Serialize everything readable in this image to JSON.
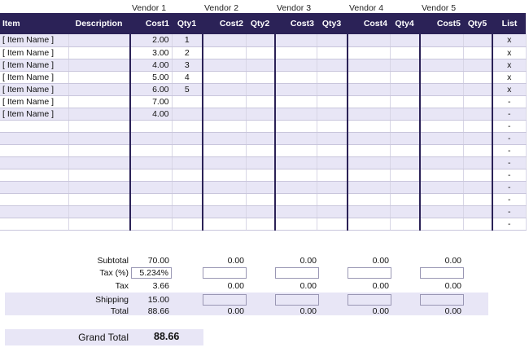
{
  "vendors": [
    "Vendor 1",
    "Vendor 2",
    "Vendor 3",
    "Vendor 4",
    "Vendor 5"
  ],
  "headers": {
    "item": "Item",
    "description": "Description",
    "cost1": "Cost1",
    "qty1": "Qty1",
    "cost2": "Cost2",
    "qty2": "Qty2",
    "cost3": "Cost3",
    "qty3": "Qty3",
    "cost4": "Cost4",
    "qty4": "Qty4",
    "cost5": "Cost5",
    "qty5": "Qty5",
    "list": "List"
  },
  "rows": [
    {
      "item": "[ Item Name ]",
      "description": "",
      "cost1": "2.00",
      "qty1": "1",
      "list": "x"
    },
    {
      "item": "[ Item Name ]",
      "description": "",
      "cost1": "3.00",
      "qty1": "2",
      "list": "x"
    },
    {
      "item": "[ Item Name ]",
      "description": "",
      "cost1": "4.00",
      "qty1": "3",
      "list": "x"
    },
    {
      "item": "[ Item Name ]",
      "description": "",
      "cost1": "5.00",
      "qty1": "4",
      "list": "x"
    },
    {
      "item": "[ Item Name ]",
      "description": "",
      "cost1": "6.00",
      "qty1": "5",
      "list": "x"
    },
    {
      "item": "[ Item Name ]",
      "description": "",
      "cost1": "7.00",
      "qty1": "",
      "list": "-"
    },
    {
      "item": "[ Item Name ]",
      "description": "",
      "cost1": "4.00",
      "qty1": "",
      "list": "-"
    },
    {
      "item": "",
      "description": "",
      "cost1": "",
      "qty1": "",
      "list": "-"
    },
    {
      "item": "",
      "description": "",
      "cost1": "",
      "qty1": "",
      "list": "-"
    },
    {
      "item": "",
      "description": "",
      "cost1": "",
      "qty1": "",
      "list": "-"
    },
    {
      "item": "",
      "description": "",
      "cost1": "",
      "qty1": "",
      "list": "-"
    },
    {
      "item": "",
      "description": "",
      "cost1": "",
      "qty1": "",
      "list": "-"
    },
    {
      "item": "",
      "description": "",
      "cost1": "",
      "qty1": "",
      "list": "-"
    },
    {
      "item": "",
      "description": "",
      "cost1": "",
      "qty1": "",
      "list": "-"
    },
    {
      "item": "",
      "description": "",
      "cost1": "",
      "qty1": "",
      "list": "-"
    },
    {
      "item": "",
      "description": "",
      "cost1": "",
      "qty1": "",
      "list": "-"
    }
  ],
  "summary": {
    "subtotal_label": "Subtotal",
    "tax_pct_label": "Tax (%)",
    "tax_label": "Tax",
    "shipping_label": "Shipping",
    "total_label": "Total",
    "v1": {
      "subtotal": "70.00",
      "tax_pct": "5.234%",
      "tax": "3.66",
      "shipping": "15.00",
      "total": "88.66"
    },
    "v2": {
      "subtotal": "0.00",
      "tax": "0.00",
      "total": "0.00"
    },
    "v3": {
      "subtotal": "0.00",
      "tax": "0.00",
      "total": "0.00"
    },
    "v4": {
      "subtotal": "0.00",
      "tax": "0.00",
      "total": "0.00"
    },
    "v5": {
      "subtotal": "0.00",
      "tax": "0.00",
      "total": "0.00"
    }
  },
  "grand_total": {
    "label": "Grand Total",
    "value": "88.66"
  },
  "colors": {
    "header_bg": "#2b2257",
    "band": "#e8e6f6",
    "separator": "#2b2257"
  }
}
